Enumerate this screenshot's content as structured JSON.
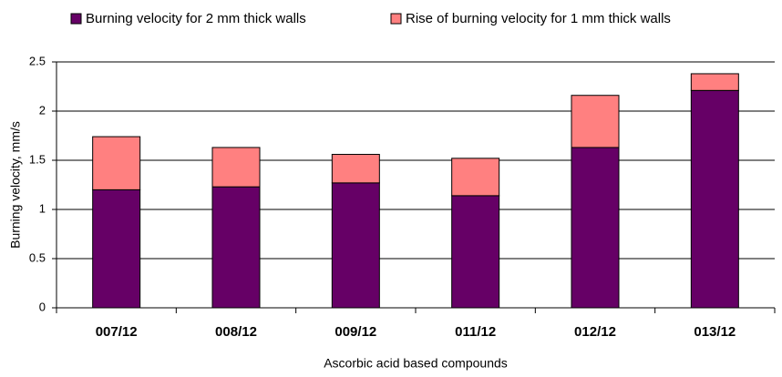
{
  "chart_data": {
    "type": "stacked_bar",
    "categories": [
      "007/12",
      "008/12",
      "009/12",
      "011/12",
      "012/12",
      "013/12"
    ],
    "series": [
      {
        "name": "Burning velocity for 2 mm thick walls",
        "color": "#660066",
        "values": [
          1.2,
          1.23,
          1.27,
          1.14,
          1.63,
          2.21
        ]
      },
      {
        "name": "Rise of burning velocity for 1 mm thick walls",
        "color": "#ff8080",
        "values": [
          0.54,
          0.4,
          0.29,
          0.38,
          0.53,
          0.17
        ]
      }
    ],
    "xlabel": "Ascorbic acid based compounds",
    "ylabel": "Burning velocity, mm/s",
    "ylim": [
      0,
      2.5
    ],
    "yticks": [
      0,
      0.5,
      1,
      1.5,
      2,
      2.5
    ],
    "grid": true,
    "legend": "top"
  }
}
